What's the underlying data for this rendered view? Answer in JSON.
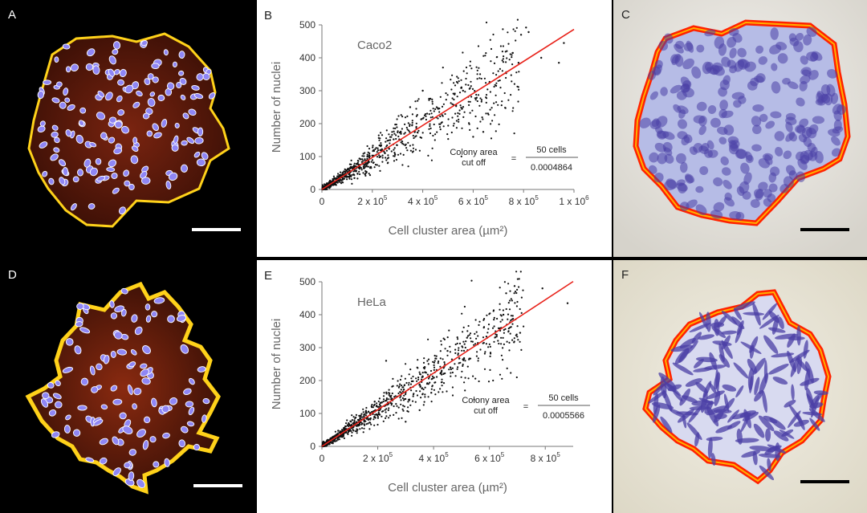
{
  "panels": {
    "A": {
      "label": "A"
    },
    "B": {
      "label": "B"
    },
    "C": {
      "label": "C"
    },
    "D": {
      "label": "D"
    },
    "E": {
      "label": "E"
    },
    "F": {
      "label": "F"
    }
  },
  "colors": {
    "fluor_outline": "#ffd21a",
    "fluor_fill": "#5a1808",
    "nucleus_fill": "#8f86f5",
    "nucleus_edge": "#ffffff",
    "stain_outline": "#ff2a00",
    "stain_fill": "#aab0e4",
    "stain_cell": "#4b3fa6",
    "fit_line": "#e8221a",
    "points": "#111111"
  },
  "chart_data": [
    {
      "panel": "B",
      "type": "scatter",
      "title": "Caco2",
      "xlabel": "Cell cluster area (µm²)",
      "ylabel": "Number of nuclei",
      "xlim": [
        0,
        1000000
      ],
      "ylim": [
        0,
        500
      ],
      "xticks": [
        {
          "v": 0,
          "b": "0",
          "e": ""
        },
        {
          "v": 200000,
          "b": "2 x 10",
          "e": "5"
        },
        {
          "v": 400000,
          "b": "4 x 10",
          "e": "5"
        },
        {
          "v": 600000,
          "b": "6 x 10",
          "e": "5"
        },
        {
          "v": 800000,
          "b": "8 x 10",
          "e": "5"
        },
        {
          "v": 1000000,
          "b": "1 x 10",
          "e": "6"
        }
      ],
      "yticks": [
        0,
        100,
        200,
        300,
        400,
        500
      ],
      "fit": {
        "slope": 0.0004864,
        "intercept": 0,
        "x_end": 1000000
      },
      "annotation": {
        "lhs1": "Colony area",
        "lhs2": "cut off",
        "eq": "=",
        "numerator": "50 cells",
        "denominator": "0.0004864"
      },
      "points": {
        "n": 950,
        "seed": 7,
        "x_max": 780000,
        "slope": 0.0004864,
        "noise": 0.22,
        "outliers": [
          [
            810000,
            492
          ],
          [
            820000,
            478
          ],
          [
            790000,
            470
          ],
          [
            780000,
            385
          ],
          [
            960000,
            445
          ],
          [
            940000,
            385
          ],
          [
            870000,
            400
          ],
          [
            560000,
            300
          ],
          [
            600000,
            160
          ],
          [
            640000,
            175
          ],
          [
            400000,
            300
          ],
          [
            350000,
            250
          ],
          [
            250000,
            110
          ]
        ]
      }
    },
    {
      "panel": "E",
      "type": "scatter",
      "title": "HeLa",
      "xlabel": "Cell cluster area (µm²)",
      "ylabel": "Number of nuclei",
      "xlim": [
        0,
        900000
      ],
      "ylim": [
        0,
        500
      ],
      "xticks": [
        {
          "v": 0,
          "b": "0",
          "e": ""
        },
        {
          "v": 200000,
          "b": "2 x 10",
          "e": "5"
        },
        {
          "v": 400000,
          "b": "4 x 10",
          "e": "5"
        },
        {
          "v": 600000,
          "b": "6 x 10",
          "e": "5"
        },
        {
          "v": 800000,
          "b": "8 x 10",
          "e": "5"
        }
      ],
      "yticks": [
        0,
        100,
        200,
        300,
        400,
        500
      ],
      "fit": {
        "slope": 0.0005566,
        "intercept": 0,
        "x_end": 900000
      },
      "annotation": {
        "lhs1": "Colony area",
        "lhs2": "cut off",
        "eq": "=",
        "numerator": "50 cells",
        "denominator": "0.0005566"
      },
      "points": {
        "n": 1000,
        "seed": 13,
        "x_max": 720000,
        "slope": 0.0005566,
        "noise": 0.18,
        "outliers": [
          [
            690000,
            487
          ],
          [
            660000,
            465
          ],
          [
            790000,
            480
          ],
          [
            880000,
            435
          ],
          [
            710000,
            345
          ],
          [
            650000,
            400
          ],
          [
            520000,
            330
          ],
          [
            450000,
            290
          ],
          [
            300000,
            75
          ],
          [
            350000,
            110
          ],
          [
            230000,
            260
          ]
        ]
      }
    }
  ]
}
